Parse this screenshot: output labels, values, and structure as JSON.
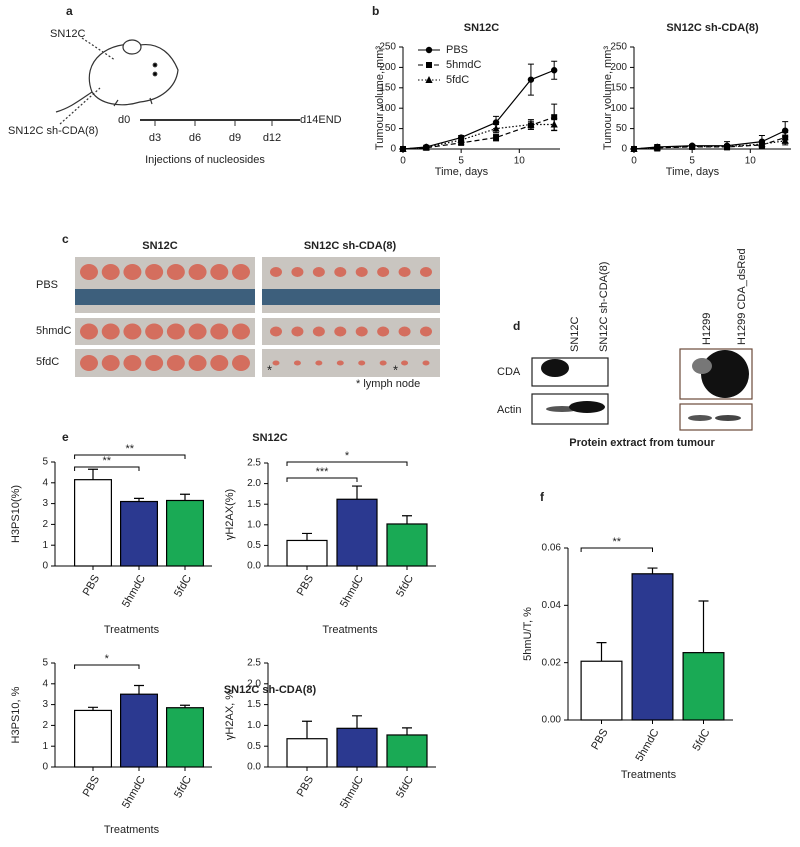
{
  "panel_labels": [
    "a",
    "b",
    "c",
    "d",
    "e",
    "f"
  ],
  "panel_a": {
    "label_top": "SN12C",
    "label_bottom": "SN12C sh-CDA(8)",
    "timeline": [
      "d0",
      "d3",
      "d6",
      "d9",
      "d12",
      "d14END"
    ],
    "caption": "Injections of nucleosides"
  },
  "panel_c": {
    "columns": [
      "SN12C",
      "SN12C sh-CDA(8)"
    ],
    "rows": [
      "PBS",
      "5hmdC",
      "5fdC"
    ],
    "asterisks": [
      "*",
      "*"
    ],
    "note": "*  lymph node"
  },
  "panel_d": {
    "lanes": [
      "SN12C",
      "SN12C sh-CDA(8)",
      "H1299",
      "H1299 CDA_dsRed"
    ],
    "rows": [
      "CDA",
      "Actin"
    ],
    "caption": "Protein extract from tumour"
  },
  "chart_data": [
    {
      "type": "line",
      "title": "SN12C",
      "ylabel": "Tumour volume, mm³",
      "xlabel": "Time, days",
      "x": [
        0,
        2,
        5,
        8,
        11,
        13
      ],
      "xlim": [
        0,
        13.5
      ],
      "xticks": [
        0,
        5,
        10
      ],
      "ylim": [
        0,
        250
      ],
      "yticks": [
        0,
        50,
        100,
        150,
        200,
        250
      ],
      "legend": "upper left",
      "series": [
        {
          "name": "PBS",
          "color": "#000000",
          "marker": "circle",
          "linestyle": "solid",
          "values": [
            0,
            5,
            28,
            65,
            170,
            193
          ],
          "errors": [
            0,
            3,
            5,
            15,
            38,
            22
          ]
        },
        {
          "name": "5hmdC",
          "color": "#000000",
          "marker": "square",
          "linestyle": "dashed",
          "values": [
            0,
            3,
            15,
            28,
            58,
            78
          ],
          "errors": [
            0,
            2,
            4,
            8,
            10,
            32
          ]
        },
        {
          "name": "5fdC",
          "color": "#000000",
          "marker": "triangle",
          "linestyle": "dotted",
          "values": [
            0,
            4,
            22,
            50,
            60,
            60
          ],
          "errors": [
            0,
            3,
            4,
            10,
            12,
            15
          ]
        }
      ]
    },
    {
      "type": "line",
      "title": "SN12C sh-CDA(8)",
      "ylabel": "Tumour volume, mm³",
      "xlabel": "Time, days",
      "x": [
        0,
        2,
        5,
        8,
        11,
        13
      ],
      "xlim": [
        0,
        13.5
      ],
      "xticks": [
        0,
        5,
        10
      ],
      "ylim": [
        0,
        250
      ],
      "yticks": [
        0,
        50,
        100,
        150,
        200,
        250
      ],
      "series": [
        {
          "color": "#000000",
          "marker": "circle",
          "linestyle": "solid",
          "values": [
            0,
            5,
            8,
            8,
            18,
            45
          ],
          "errors": [
            0,
            3,
            3,
            10,
            15,
            22
          ]
        },
        {
          "color": "#000000",
          "marker": "square",
          "linestyle": "dashed",
          "values": [
            0,
            3,
            5,
            5,
            10,
            28
          ],
          "errors": [
            0,
            8,
            3,
            5,
            8,
            12
          ]
        },
        {
          "color": "#000000",
          "marker": "triangle",
          "linestyle": "dotted",
          "values": [
            0,
            4,
            6,
            6,
            12,
            20
          ],
          "errors": [
            0,
            3,
            3,
            5,
            6,
            10
          ]
        }
      ]
    },
    {
      "type": "bar",
      "title": "SN12C",
      "ylabel": "H3PS10(%)",
      "xlabel": "Treatments",
      "categories": [
        "PBS",
        "5hmdC",
        "5fdC"
      ],
      "values": [
        4.15,
        3.1,
        3.15
      ],
      "errors": [
        0.5,
        0.15,
        0.3
      ],
      "colors": [
        "#ffffff",
        "#2b3990",
        "#1aaa55"
      ],
      "ylim": [
        0,
        5
      ],
      "yticks": [
        0,
        1,
        2,
        3,
        4,
        5
      ],
      "annotations": [
        "**",
        "**"
      ]
    },
    {
      "type": "bar",
      "ylabel": "γH2AX(%)",
      "xlabel": "Treatments",
      "categories": [
        "PBS",
        "5hmdC",
        "5fdC"
      ],
      "values": [
        0.62,
        1.62,
        1.02
      ],
      "errors": [
        0.17,
        0.32,
        0.2
      ],
      "colors": [
        "#ffffff",
        "#2b3990",
        "#1aaa55"
      ],
      "ylim": [
        0,
        2.5
      ],
      "yticks": [
        {
          "value": 0,
          "label": "0.0"
        },
        0.5,
        {
          "value": 1,
          "label": "1.0"
        },
        1.5,
        {
          "value": 2,
          "label": "2.0"
        },
        2.5
      ],
      "annotations": [
        "***",
        "*"
      ]
    },
    {
      "type": "bar",
      "title": "SN12C sh-CDA(8)",
      "ylabel": "H3PS10, %",
      "xlabel": "Treatments",
      "categories": [
        "PBS",
        "5hmdC",
        "5fdC"
      ],
      "values": [
        2.72,
        3.5,
        2.85
      ],
      "errors": [
        0.15,
        0.42,
        0.12
      ],
      "colors": [
        "#ffffff",
        "#2b3990",
        "#1aaa55"
      ],
      "ylim": [
        0,
        5
      ],
      "yticks": [
        0,
        1,
        2,
        3,
        4,
        5
      ],
      "annotations": [
        "*"
      ]
    },
    {
      "type": "bar",
      "ylabel": "γH2AX, %",
      "categories": [
        "PBS",
        "5hmdC",
        "5fdC"
      ],
      "values": [
        0.68,
        0.93,
        0.77
      ],
      "errors": [
        0.42,
        0.3,
        0.17
      ],
      "colors": [
        "#ffffff",
        "#2b3990",
        "#1aaa55"
      ],
      "ylim": [
        0,
        2.5
      ],
      "yticks": [
        {
          "value": 0,
          "label": "0.0"
        },
        0.5,
        {
          "value": 1,
          "label": "1.0"
        },
        1.5,
        {
          "value": 2,
          "label": "2.0"
        },
        2.5
      ]
    },
    {
      "type": "bar",
      "ylabel": "5hmU/T, %",
      "xlabel": "Treatments",
      "categories": [
        "PBS",
        "5hmdC",
        "5fdC"
      ],
      "values": [
        0.0205,
        0.051,
        0.0235
      ],
      "errors": [
        0.0065,
        0.002,
        0.018
      ],
      "colors": [
        "#ffffff",
        "#2b3990",
        "#1aaa55"
      ],
      "ylim": [
        0,
        0.06
      ],
      "yticks": [
        {
          "value": 0,
          "label": "0.00"
        },
        0.02,
        0.04,
        0.06
      ],
      "annotations": [
        "**"
      ]
    }
  ]
}
